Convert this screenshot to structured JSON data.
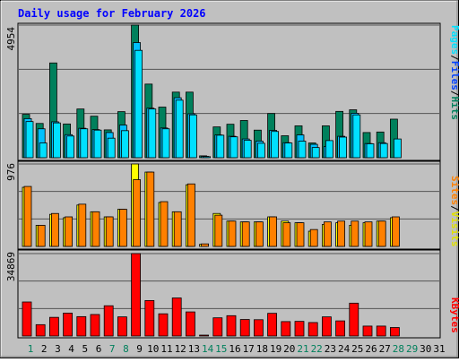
{
  "title": "Daily usage for February 2026",
  "colors": {
    "background": "#c0c0c0",
    "title": "#0000ff",
    "hits": "#00805c",
    "files": "#00c0ff",
    "pages": "#00e0ff",
    "visits": "#ffff00",
    "sites": "#ff8000",
    "kbytes": "#ff0000",
    "weekend_label": "#00805c",
    "weekday_label": "#000000",
    "separator": "#555555"
  },
  "labels": {
    "hits": "Hits",
    "files": "Files",
    "pages": "Pages",
    "visits": "Visits",
    "sites": "Sites",
    "kbytes": "KBytes",
    "slash": "/"
  },
  "chart_data": [
    {
      "type": "bar",
      "panel": "hits-files-pages",
      "ymax": 4954,
      "max_label": "4954",
      "categories": [
        "1",
        "2",
        "3",
        "4",
        "5",
        "6",
        "7",
        "8",
        "9",
        "10",
        "11",
        "12",
        "13",
        "14",
        "15",
        "16",
        "17",
        "18",
        "19",
        "20",
        "21",
        "22",
        "23",
        "24",
        "25",
        "26",
        "27",
        "28",
        "29",
        "30",
        "31"
      ],
      "series": [
        {
          "name": "Hits",
          "values": [
            1620,
            1280,
            3540,
            1260,
            1820,
            1550,
            1040,
            1720,
            4954,
            2750,
            1890,
            2450,
            2450,
            70,
            1150,
            1250,
            1390,
            1030,
            1650,
            820,
            1190,
            550,
            1190,
            1730,
            1790,
            940,
            960,
            1440,
            0,
            0,
            0
          ]
        },
        {
          "name": "Files",
          "values": [
            1460,
            1080,
            1340,
            860,
            1100,
            1050,
            940,
            1220,
            4300,
            1850,
            1110,
            2240,
            1640,
            50,
            850,
            800,
            700,
            620,
            1020,
            560,
            850,
            500,
            420,
            800,
            1660,
            530,
            560,
            0,
            0,
            0,
            0
          ]
        },
        {
          "name": "Pages",
          "values": [
            1350,
            550,
            1300,
            810,
            1080,
            1030,
            730,
            1010,
            4010,
            1820,
            1080,
            2150,
            1600,
            40,
            840,
            780,
            650,
            540,
            980,
            550,
            620,
            380,
            640,
            770,
            1600,
            520,
            530,
            700,
            0,
            0,
            0
          ]
        }
      ]
    },
    {
      "type": "bar",
      "panel": "visits-sites",
      "ymax": 976,
      "max_label": "976",
      "categories": [
        "1",
        "2",
        "3",
        "4",
        "5",
        "6",
        "7",
        "8",
        "9",
        "10",
        "11",
        "12",
        "13",
        "14",
        "15",
        "16",
        "17",
        "18",
        "19",
        "20",
        "21",
        "22",
        "23",
        "24",
        "25",
        "26",
        "27",
        "28",
        "29",
        "30",
        "31"
      ],
      "series": [
        {
          "name": "Visits",
          "values": [
            700,
            250,
            380,
            340,
            490,
            410,
            350,
            440,
            976,
            880,
            520,
            410,
            730,
            25,
            390,
            300,
            290,
            290,
            350,
            300,
            280,
            180,
            260,
            280,
            250,
            280,
            300,
            340,
            0,
            0,
            0
          ]
        },
        {
          "name": "Sites",
          "values": [
            710,
            250,
            390,
            350,
            500,
            410,
            350,
            440,
            790,
            880,
            530,
            410,
            740,
            30,
            370,
            300,
            290,
            290,
            350,
            280,
            280,
            200,
            290,
            300,
            300,
            290,
            300,
            350,
            0,
            0,
            0
          ]
        }
      ]
    },
    {
      "type": "bar",
      "panel": "kbytes",
      "ymax": 34869,
      "max_label": "34869",
      "categories": [
        "1",
        "2",
        "3",
        "4",
        "5",
        "6",
        "7",
        "8",
        "9",
        "10",
        "11",
        "12",
        "13",
        "14",
        "15",
        "16",
        "17",
        "18",
        "19",
        "20",
        "21",
        "22",
        "23",
        "24",
        "25",
        "26",
        "27",
        "28",
        "29",
        "30",
        "31"
      ],
      "series": [
        {
          "name": "KBytes",
          "values": [
            14400,
            4800,
            7900,
            9700,
            8200,
            9100,
            12800,
            8100,
            34869,
            15000,
            9400,
            16100,
            10200,
            350,
            7700,
            8600,
            7000,
            6900,
            9600,
            6100,
            6200,
            5700,
            8100,
            6400,
            13900,
            4200,
            4200,
            3600,
            0,
            0,
            0
          ]
        }
      ]
    }
  ],
  "weekend_days": [
    1,
    7,
    8,
    14,
    15,
    21,
    22,
    28,
    29
  ]
}
